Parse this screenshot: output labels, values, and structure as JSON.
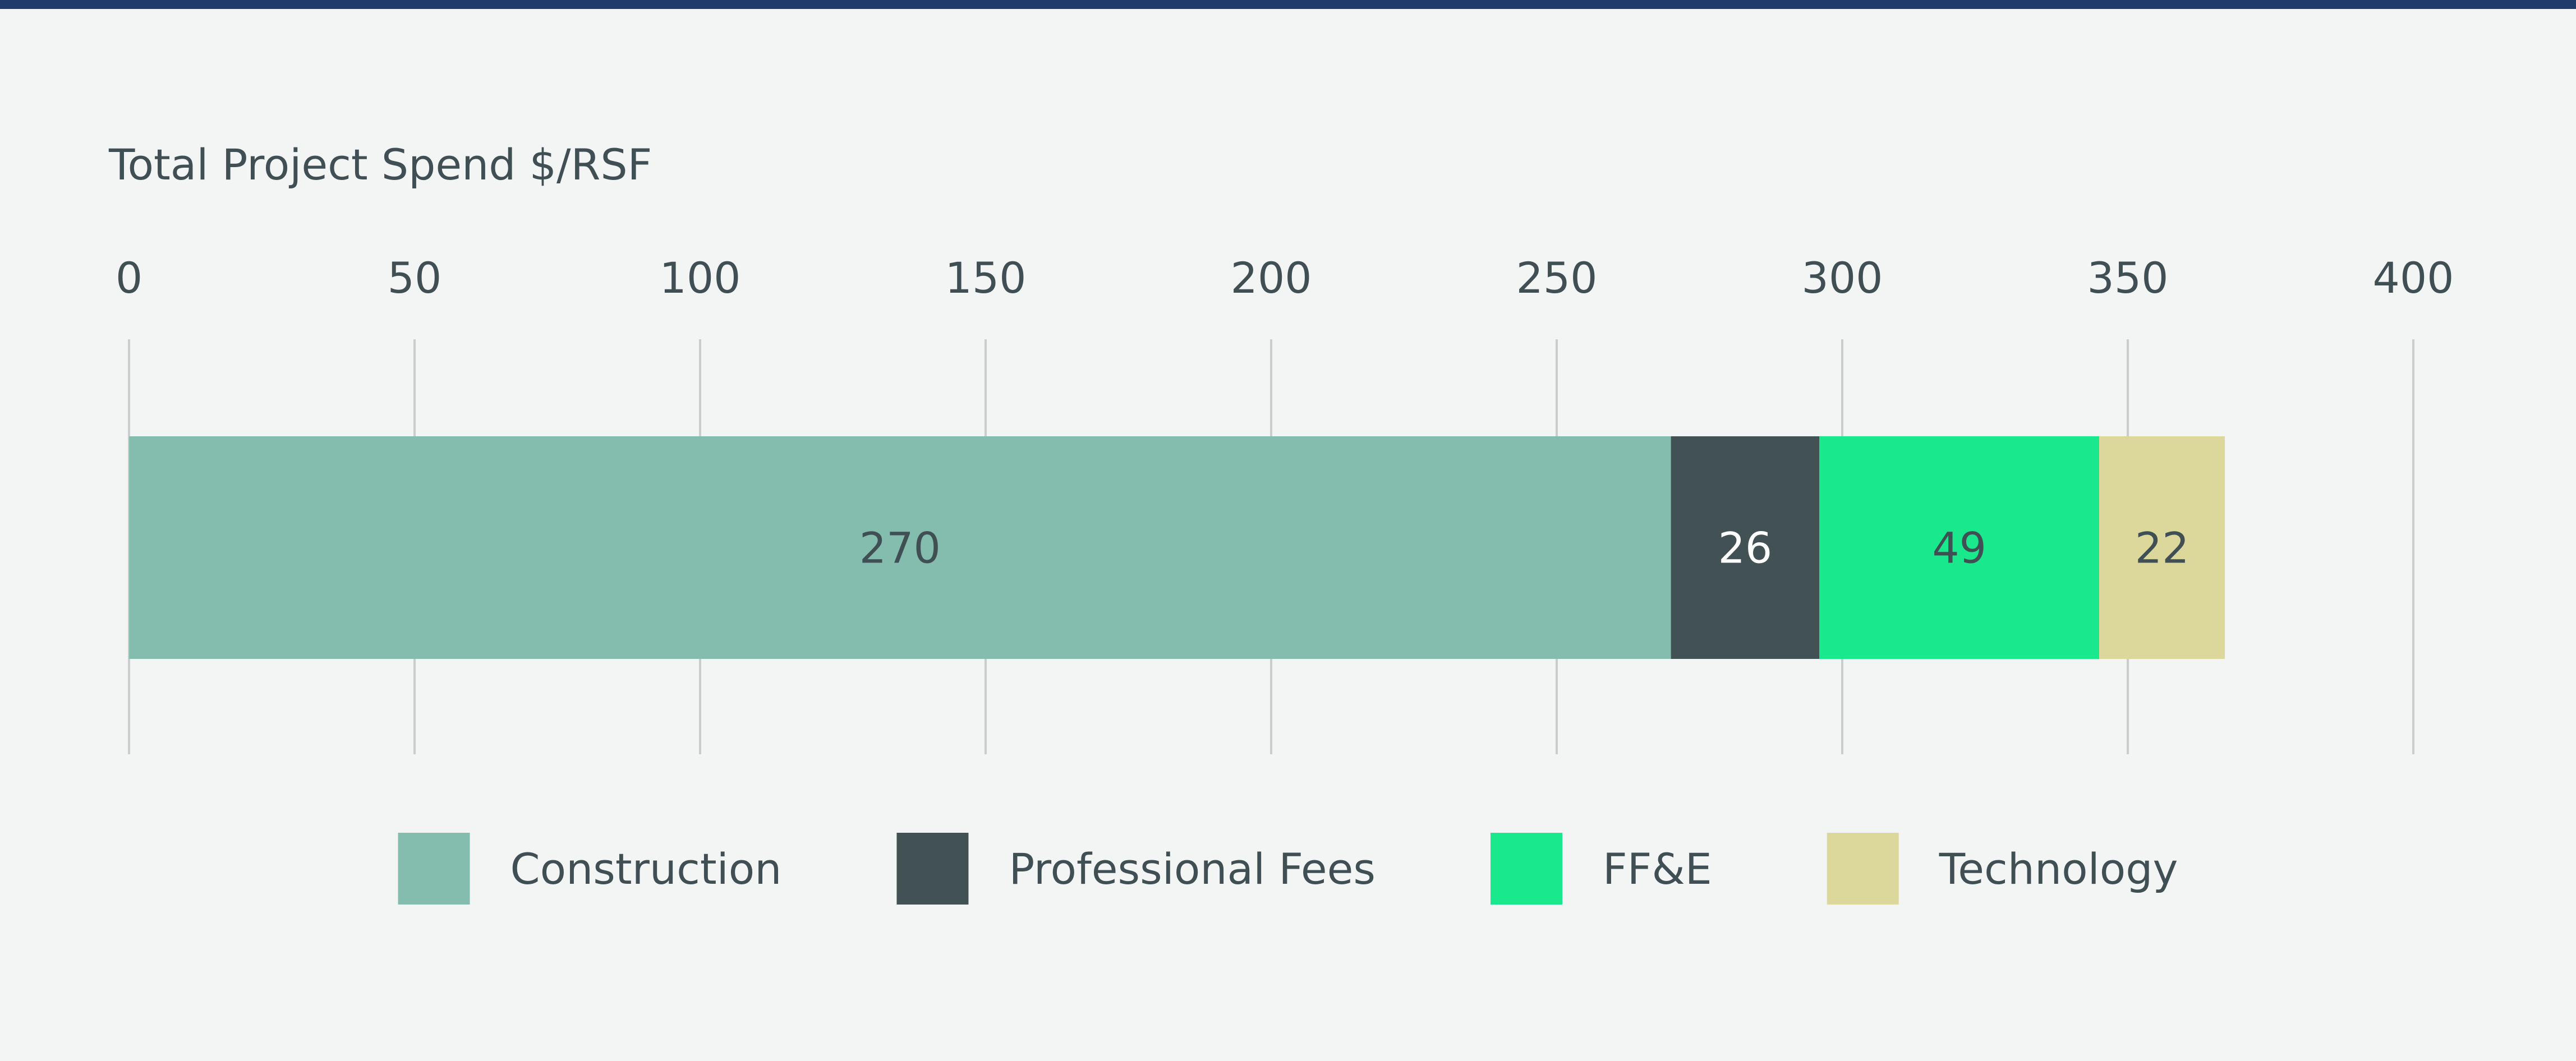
{
  "chart_data": {
    "type": "bar",
    "orientation": "horizontal",
    "stacked": true,
    "title": "Total Project Spend $/RSF",
    "xlim": [
      0,
      400
    ],
    "x_ticks": [
      0,
      50,
      100,
      150,
      200,
      250,
      300,
      350,
      400
    ],
    "tick_labels": [
      "0",
      "50",
      "100",
      "150",
      "200",
      "250",
      "300",
      "350",
      "400"
    ],
    "grid": true,
    "legend_position": "bottom",
    "series": [
      {
        "name": "Construction",
        "value": 270,
        "label": "270",
        "color": "#84bcad",
        "label_color": "#3f4f54"
      },
      {
        "name": "Professional Fees",
        "value": 26,
        "label": "26",
        "color": "#425153",
        "label_color": "#ffffff"
      },
      {
        "name": "FF&E",
        "value": 49,
        "label": "49",
        "color": "#1ae88c",
        "label_color": "#3f4f54"
      },
      {
        "name": "Technology",
        "value": 22,
        "label": "22",
        "color": "#dcd89b",
        "label_color": "#3f4f54"
      }
    ]
  },
  "colors": {
    "background": "#f3f5f4",
    "top_rule": "#1f3a6b",
    "gridline": "#c9cdcd",
    "text": "#3f4f54"
  }
}
